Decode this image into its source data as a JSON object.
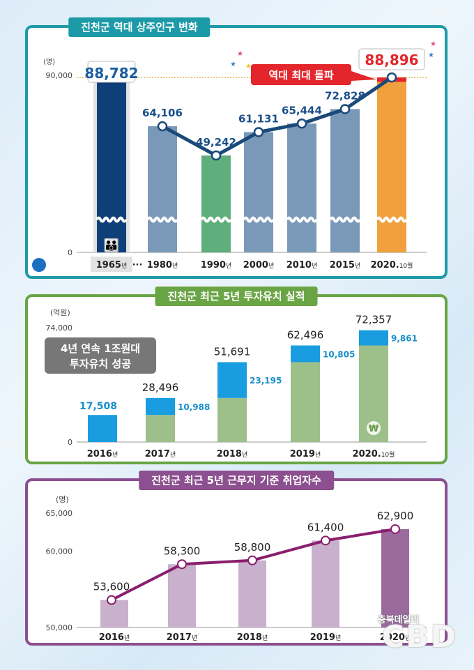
{
  "chart_data": [
    {
      "type": "bar",
      "title": "진천군 역대 상주인구 변화",
      "unit": "(명)",
      "y_ticks": [
        "90,000",
        "0"
      ],
      "ylim": [
        0,
        90000
      ],
      "categories": [
        "1965",
        "1980",
        "1990",
        "2000",
        "2010",
        "2015",
        "2020."
      ],
      "category_suffix": [
        "년",
        "년",
        "년",
        "년",
        "년",
        "년",
        "10월"
      ],
      "values": [
        88782,
        64106,
        49242,
        61131,
        65444,
        72828,
        88896
      ],
      "value_labels": [
        "88,782",
        "64,106",
        "49,242",
        "61,131",
        "65,444",
        "72,828",
        "88,896"
      ],
      "ellipsis": "···",
      "callout": "역대 최대 돌파",
      "reference_line": 88782,
      "colors": {
        "1965": "#0e3f78",
        "default": "#7a99b8",
        "1990": "#5fae7c",
        "2020": "#f0a03c",
        "record": "#e3262b",
        "line": "#1a4a7a"
      }
    },
    {
      "type": "bar",
      "title": "진천군 최근 5년 투자유치 실적",
      "unit": "(억원)",
      "y_ticks": [
        "74,000",
        "0"
      ],
      "ylim": [
        0,
        74000
      ],
      "categories": [
        "2016",
        "2017",
        "2018",
        "2019",
        "2020."
      ],
      "category_suffix": [
        "년",
        "년",
        "년",
        "년",
        "10월"
      ],
      "series": [
        {
          "values": [
            0,
            17508,
            28496,
            51691,
            62496
          ]
        },
        {
          "values": [
            17508,
            10988,
            23195,
            10805,
            9861
          ]
        }
      ],
      "totals": [
        17508,
        28496,
        51691,
        62496,
        72357
      ],
      "total_labels": [
        "17,508",
        "28,496",
        "51,691",
        "62,496",
        "72,357"
      ],
      "increment_labels": [
        "17,508",
        "10,988",
        "23,195",
        "10,805",
        "9,861"
      ],
      "badge": "4년 연속 1조원대\n투자유치 성공",
      "won_symbol": "₩",
      "colors": {
        "base": "#9dbf8a",
        "increment": "#1a9de0",
        "label": "#1a8fc9"
      }
    },
    {
      "type": "bar",
      "title": "진천군 최근 5년 근무지 기준 취업자수",
      "unit": "(명)",
      "y_ticks": [
        "65,000",
        "60,000",
        "50,000"
      ],
      "ylim": [
        50000,
        65000
      ],
      "categories": [
        "2016",
        "2017",
        "2018",
        "2019",
        "2020"
      ],
      "category_suffix": [
        "년",
        "년",
        "년",
        "년",
        "년"
      ],
      "values": [
        53600,
        58300,
        58800,
        61400,
        62900
      ],
      "value_labels": [
        "53,600",
        "58,300",
        "58,800",
        "61,400",
        "62,900"
      ],
      "colors": {
        "bar": "#c9b0cc",
        "last": "#9b6a9d",
        "line": "#8a1e6e"
      }
    }
  ],
  "watermark": {
    "main": "CBD",
    "sub": "충북데일리"
  }
}
